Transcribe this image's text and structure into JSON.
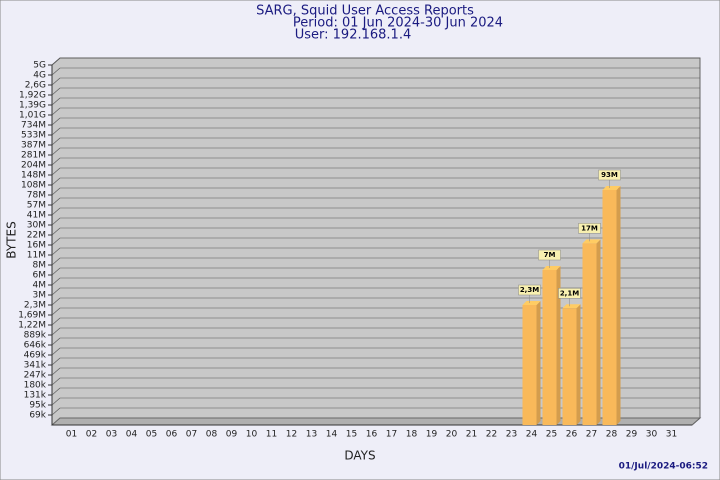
{
  "chart_data": {
    "type": "bar",
    "title": "SARG, Squid User Access Reports",
    "subtitle": [
      "Period: 01 Jun 2024-30 Jun 2024",
      "User: 192.168.1.4"
    ],
    "x_label": "DAYS",
    "y_label": "BYTES",
    "footer": "01/Jul/2024-06:52",
    "color": "#f9b95a",
    "grid": true,
    "categories": [
      "01",
      "02",
      "03",
      "04",
      "05",
      "06",
      "07",
      "08",
      "09",
      "10",
      "11",
      "12",
      "13",
      "14",
      "15",
      "16",
      "17",
      "18",
      "19",
      "20",
      "21",
      "22",
      "23",
      "24",
      "25",
      "26",
      "27",
      "28",
      "29",
      "30",
      "31"
    ],
    "values": [
      null,
      null,
      null,
      null,
      null,
      null,
      null,
      null,
      null,
      null,
      null,
      null,
      null,
      null,
      null,
      null,
      null,
      null,
      null,
      null,
      null,
      null,
      null,
      2300000,
      7000000,
      2100000,
      17000000,
      93000000,
      null,
      null,
      null
    ],
    "value_labels": [
      null,
      null,
      null,
      null,
      null,
      null,
      null,
      null,
      null,
      null,
      null,
      null,
      null,
      null,
      null,
      null,
      null,
      null,
      null,
      null,
      null,
      null,
      null,
      "2,3M",
      "7M",
      "2,1M",
      "17M",
      "93M",
      null,
      null,
      null
    ],
    "ylim": [
      0,
      5000000000
    ],
    "yticks": [
      {
        "value": 69000,
        "label": "69k"
      },
      {
        "value": 95000,
        "label": "95k"
      },
      {
        "value": 131000,
        "label": "131k"
      },
      {
        "value": 180000,
        "label": "180k"
      },
      {
        "value": 247000,
        "label": "247k"
      },
      {
        "value": 341000,
        "label": "341k"
      },
      {
        "value": 469000,
        "label": "469k"
      },
      {
        "value": 646000,
        "label": "646k"
      },
      {
        "value": 889000,
        "label": "889k"
      },
      {
        "value": 1220000,
        "label": "1,22M"
      },
      {
        "value": 1690000,
        "label": "1,69M"
      },
      {
        "value": 2300000,
        "label": "2,3M"
      },
      {
        "value": 3000000,
        "label": "3M"
      },
      {
        "value": 4000000,
        "label": "4M"
      },
      {
        "value": 6000000,
        "label": "6M"
      },
      {
        "value": 8000000,
        "label": "8M"
      },
      {
        "value": 11000000,
        "label": "11M"
      },
      {
        "value": 16000000,
        "label": "16M"
      },
      {
        "value": 22000000,
        "label": "22M"
      },
      {
        "value": 30000000,
        "label": "30M"
      },
      {
        "value": 41000000,
        "label": "41M"
      },
      {
        "value": 57000000,
        "label": "57M"
      },
      {
        "value": 78000000,
        "label": "78M"
      },
      {
        "value": 108000000,
        "label": "108M"
      },
      {
        "value": 148000000,
        "label": "148M"
      },
      {
        "value": 204000000,
        "label": "204M"
      },
      {
        "value": 281000000,
        "label": "281M"
      },
      {
        "value": 387000000,
        "label": "387M"
      },
      {
        "value": 533000000,
        "label": "533M"
      },
      {
        "value": 734000000,
        "label": "734M"
      },
      {
        "value": 1010000000,
        "label": "1,01G"
      },
      {
        "value": 1390000000,
        "label": "1,39G"
      },
      {
        "value": 1920000000,
        "label": "1,92G"
      },
      {
        "value": 2600000000,
        "label": "2,6G"
      },
      {
        "value": 4000000000,
        "label": "4G"
      },
      {
        "value": 5000000000,
        "label": "5G"
      }
    ]
  }
}
